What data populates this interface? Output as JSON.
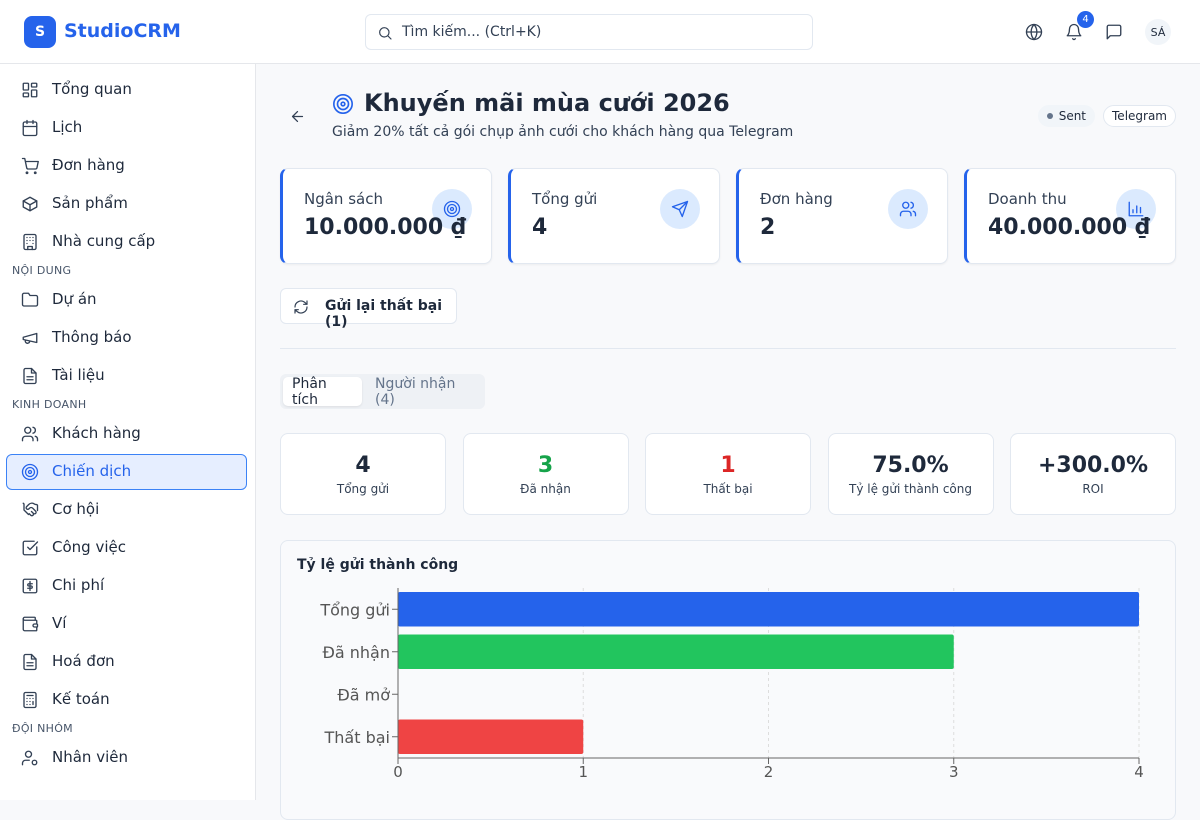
{
  "app": {
    "logo": "S",
    "name": "StudioCRM",
    "search": "Tìm kiếm... (Ctrl+K)",
    "notifications": 4,
    "avatar": "SÁ"
  },
  "sidebar": {
    "main": [
      "Tổng quan",
      "Lịch",
      "Đơn hàng",
      "Sản phẩm",
      "Nhà cung cấp"
    ],
    "sections": [
      {
        "label": "NỘI DUNG",
        "items": [
          "Dự án",
          "Thông báo",
          "Tài liệu"
        ]
      },
      {
        "label": "KINH DOANH",
        "items": [
          "Khách hàng",
          "Chiến dịch",
          "Cơ hội",
          "Công việc",
          "Chi phí",
          "Ví",
          "Hoá đơn",
          "Kế toán"
        ],
        "active": 1
      },
      {
        "label": "ĐỘI NHÓM",
        "items": [
          "Nhân viên"
        ]
      }
    ]
  },
  "campaign": {
    "title": "Khuyến mãi mùa cưới 2026",
    "description": "Giảm 20% tất cả gói chụp ảnh cưới cho khách hàng qua Telegram",
    "tags": [
      "Sent",
      "Telegram"
    ],
    "stats": [
      {
        "label": "Ngân sách",
        "value": "10.000.000 ₫"
      },
      {
        "label": "Tổng gửi",
        "value": 4
      },
      {
        "label": "Đơn hàng",
        "value": 2
      },
      {
        "label": "Doanh thu",
        "value": "40.000.000 ₫"
      }
    ],
    "retry_button": "Gửi lại thất bại (1)",
    "tabs": [
      "Phân tích",
      "Người nhận (4)"
    ],
    "metrics": [
      {
        "value": 4,
        "label": "Tổng gửi"
      },
      {
        "value": 3,
        "label": "Đã nhận",
        "color": "#16a34a"
      },
      {
        "value": 1,
        "label": "Thất bại",
        "color": "#dc2626"
      },
      {
        "value": "75.0%",
        "label": "Tỷ lệ gửi thành công"
      },
      {
        "value": "+300.0%",
        "label": "ROI"
      }
    ]
  },
  "chart_data": {
    "type": "hbar",
    "title": "Tỷ lệ gửi thành công",
    "categories": [
      "Tổng gửi",
      "Đã nhận",
      "Đã mở",
      "Thất bại"
    ],
    "values": [
      4,
      3,
      0,
      1
    ],
    "colors": [
      "#2563eb",
      "#22c55e",
      "#f59e0b",
      "#ef4444"
    ],
    "xlim": [
      0,
      4
    ],
    "xticks": [
      0,
      1,
      2,
      3,
      4
    ],
    "grid": true
  }
}
